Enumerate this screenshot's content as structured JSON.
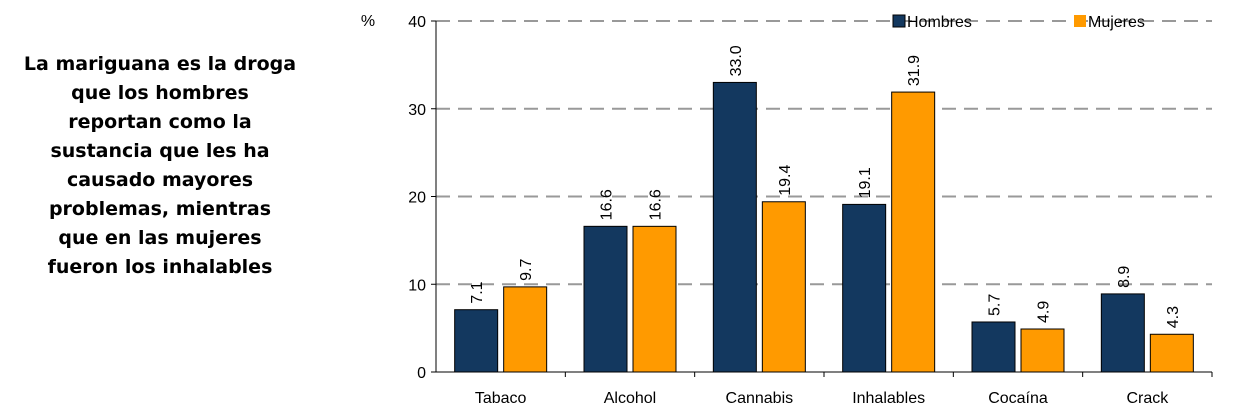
{
  "caption": {
    "lines": [
      "La mariguana es la droga",
      "que los hombres",
      "reportan como la",
      "sustancia que les ha",
      "causado mayores",
      "problemas, mientras",
      "que en las mujeres",
      "fueron los inhalables"
    ]
  },
  "chart_data": {
    "type": "bar",
    "title": "",
    "xlabel": "",
    "ylabel": "%",
    "ylim": [
      0,
      40
    ],
    "yticks": [
      0,
      10,
      20,
      30,
      40
    ],
    "grid": true,
    "legend_position": "top-right",
    "categories": [
      "Tabaco",
      "Alcohol",
      "Cannabis",
      "Inhalables",
      "Cocaína",
      "Crack"
    ],
    "series": [
      {
        "name": "Hombres",
        "color": "#13385F",
        "values": [
          7.1,
          16.6,
          33.0,
          19.1,
          5.7,
          8.9
        ],
        "labels": [
          "7.1",
          "16.6",
          "33.0",
          "19.1",
          "5.7",
          "8.9"
        ]
      },
      {
        "name": "Mujeres",
        "color": "#FF9A00",
        "values": [
          9.7,
          16.6,
          19.4,
          31.9,
          4.9,
          4.3
        ],
        "labels": [
          "9.7",
          "16.6",
          "19.4",
          "31.9",
          "4.9",
          "4.3"
        ]
      }
    ]
  }
}
